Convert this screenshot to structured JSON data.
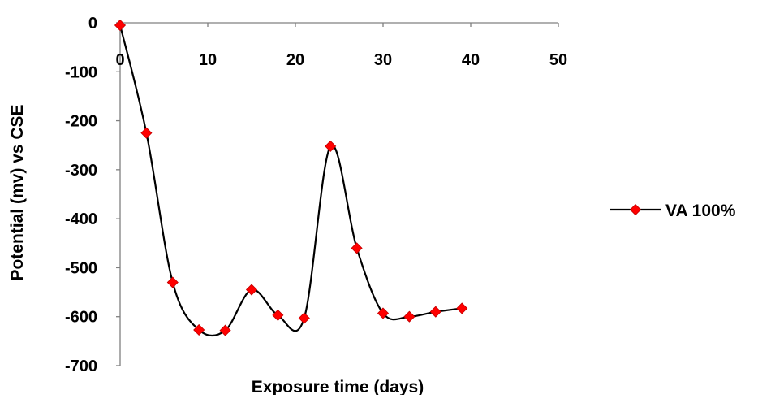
{
  "chart_data": {
    "type": "line",
    "title": "",
    "xlabel": "Exposure time (days)",
    "ylabel": "Potential (mv) vs CSE",
    "xlim": [
      0,
      50
    ],
    "ylim": [
      -700,
      0
    ],
    "x_ticks": [
      0,
      10,
      20,
      30,
      40,
      50
    ],
    "y_ticks": [
      0,
      -100,
      -200,
      -300,
      -400,
      -500,
      -600,
      -700
    ],
    "grid": false,
    "smooth": true,
    "legend_position": "right",
    "series": [
      {
        "name": "VA 100%",
        "line_color": "#000000",
        "marker_color": "#ff0000",
        "marker": "diamond",
        "x": [
          0,
          3,
          6,
          9,
          12,
          15,
          18,
          21,
          24,
          27,
          30,
          33,
          36,
          39
        ],
        "y": [
          -5,
          -225,
          -530,
          -627,
          -628,
          -545,
          -597,
          -603,
          -252,
          -460,
          -593,
          -600,
          -590,
          -583
        ]
      }
    ]
  }
}
